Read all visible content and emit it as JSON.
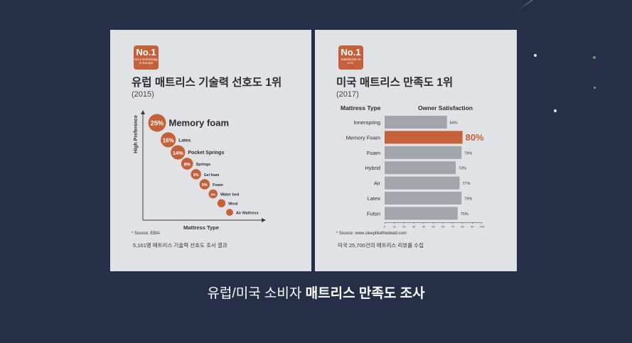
{
  "background_color": "#252f48",
  "accent_color": "#c5613a",
  "left_panel": {
    "badge_title": "No.1",
    "badge_sub": "No.1 technology in Europe",
    "title": "유럽 매트리스 기술력 선호도 1위",
    "year": "(2015)",
    "source": "* Source: EBIA",
    "note": "5,161명 매트리스 기술력 선호도 조사 결과"
  },
  "right_panel": {
    "badge_title": "No.1",
    "badge_sub": "Satisfaction in U.S.",
    "title": "미국 매트리스 만족도 1위",
    "year": "(2017)",
    "col_type": "Mattress Type",
    "col_owner": "Owner Satisfaction",
    "source": "* Source: www.sleeplikethedead.com",
    "note": "미국 25,700건의 매트리스 리뷰를 수집"
  },
  "caption": {
    "normal": "유럽/미국 소비자 ",
    "bold": "매트리스 만족도 조사"
  },
  "chart_data": [
    {
      "type": "scatter",
      "title": "",
      "xlabel": "Mattress Type",
      "ylabel": "High Preference",
      "points": [
        {
          "label": "Memory foam",
          "pct": "25%",
          "value": 25
        },
        {
          "label": "Latex",
          "pct": "16%",
          "value": 16
        },
        {
          "label": "Pocket Springs",
          "pct": "14%",
          "value": 14
        },
        {
          "label": "Springs",
          "pct": "8%",
          "value": 8
        },
        {
          "label": "Gel foam",
          "pct": "5%",
          "value": 5
        },
        {
          "label": "Foam",
          "pct": "5%",
          "value": 5
        },
        {
          "label": "Water bed",
          "pct": "3%",
          "value": 3
        },
        {
          "label": "Wool",
          "pct": "",
          "value": 2
        },
        {
          "label": "Air Mattress",
          "pct": "",
          "value": 1
        }
      ]
    },
    {
      "type": "bar",
      "orientation": "horizontal",
      "categories": [
        "Innerspring",
        "Memory Foam",
        "Foam",
        "Hybrid",
        "Air",
        "Latex",
        "Futon"
      ],
      "values": [
        64,
        80,
        79,
        73,
        77,
        79,
        75
      ],
      "value_labels": [
        "64%",
        "80%",
        "79%",
        "73%",
        "77%",
        "79%",
        "75%"
      ],
      "highlight": "Memory Foam",
      "bar_color": "#a3a5aa",
      "highlight_color": "#c5613a",
      "xlim": [
        0,
        100
      ],
      "ticks": [
        "0",
        "10",
        "20",
        "30",
        "40",
        "50",
        "60",
        "70",
        "80",
        "90",
        "100"
      ]
    }
  ]
}
